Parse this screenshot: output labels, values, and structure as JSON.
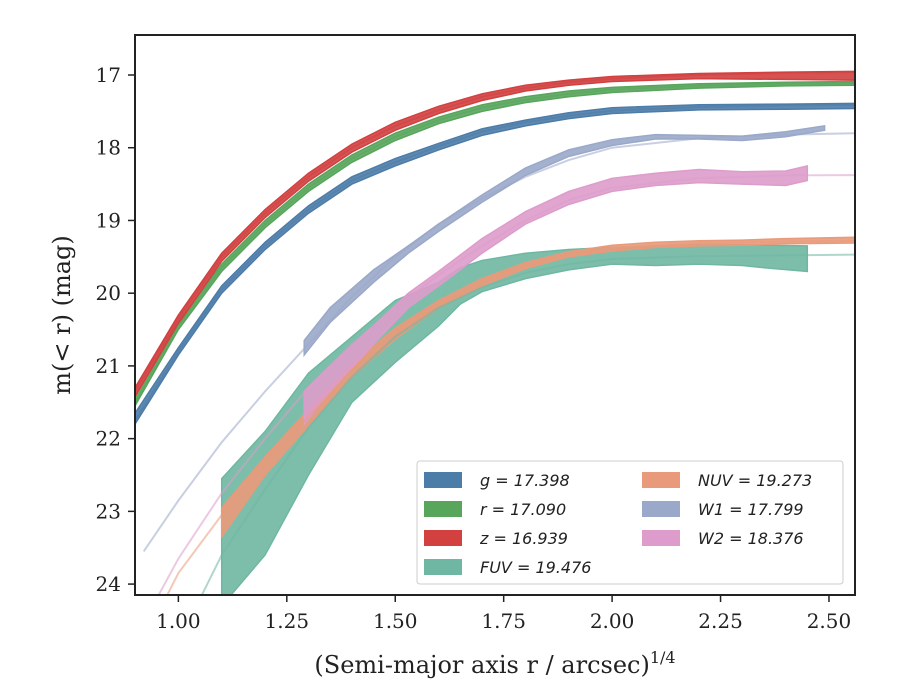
{
  "chart_data": {
    "type": "line",
    "xlabel": "(Semi-major axis r / arcsec)",
    "xlabel_exponent": "1/4",
    "ylabel": "m(< r) (mag)",
    "xlim": [
      0.9,
      2.56
    ],
    "ylim": [
      24.15,
      16.45
    ],
    "y_inverted": true,
    "grid": false,
    "legend_position": "lower-right",
    "xticks": [
      "1.00",
      "1.25",
      "1.50",
      "1.75",
      "2.00",
      "2.25",
      "2.50"
    ],
    "yticks": [
      "17",
      "18",
      "19",
      "20",
      "21",
      "22",
      "23",
      "24"
    ],
    "series": [
      {
        "name": "g = 17.398",
        "legend_label": "g = 17.398",
        "color": "#4c7ca8",
        "fit_asymptote": 17.398,
        "fit_line": [
          [
            0.9,
            21.75
          ],
          [
            1.0,
            20.8
          ],
          [
            1.1,
            19.95
          ],
          [
            1.2,
            19.35
          ],
          [
            1.3,
            18.85
          ],
          [
            1.4,
            18.45
          ],
          [
            1.5,
            18.2
          ],
          [
            1.6,
            17.98
          ],
          [
            1.7,
            17.78
          ],
          [
            1.8,
            17.65
          ],
          [
            1.9,
            17.56
          ],
          [
            2.0,
            17.49
          ],
          [
            2.2,
            17.44
          ],
          [
            2.4,
            17.42
          ],
          [
            2.56,
            17.41
          ]
        ],
        "band": {
          "x": [
            0.9,
            1.0,
            1.1,
            1.2,
            1.3,
            1.4,
            1.5,
            1.6,
            1.7,
            1.8,
            1.9,
            2.0,
            2.2,
            2.4,
            2.56
          ],
          "y_low": [
            21.8,
            20.85,
            20.0,
            19.4,
            18.9,
            18.5,
            18.25,
            18.03,
            17.83,
            17.7,
            17.6,
            17.53,
            17.48,
            17.47,
            17.46
          ],
          "y_high": [
            21.65,
            20.75,
            19.9,
            19.3,
            18.8,
            18.4,
            18.15,
            17.94,
            17.74,
            17.62,
            17.52,
            17.45,
            17.41,
            17.4,
            17.39
          ]
        }
      },
      {
        "name": "r = 17.090",
        "legend_label": "r = 17.090",
        "color": "#58a55c",
        "fit_asymptote": 17.09,
        "fit_line": [
          [
            0.9,
            21.5
          ],
          [
            1.0,
            20.45
          ],
          [
            1.1,
            19.65
          ],
          [
            1.2,
            19.05
          ],
          [
            1.3,
            18.55
          ],
          [
            1.4,
            18.15
          ],
          [
            1.5,
            17.85
          ],
          [
            1.6,
            17.62
          ],
          [
            1.7,
            17.45
          ],
          [
            1.8,
            17.34
          ],
          [
            1.9,
            17.26
          ],
          [
            2.0,
            17.2
          ],
          [
            2.2,
            17.15
          ],
          [
            2.4,
            17.12
          ],
          [
            2.56,
            17.11
          ]
        ],
        "band": {
          "x": [
            0.9,
            1.0,
            1.1,
            1.2,
            1.3,
            1.4,
            1.5,
            1.6,
            1.7,
            1.8,
            1.9,
            2.0,
            2.2,
            2.4,
            2.56
          ],
          "y_low": [
            21.55,
            20.5,
            19.7,
            19.1,
            18.6,
            18.2,
            17.9,
            17.67,
            17.5,
            17.38,
            17.3,
            17.24,
            17.18,
            17.15,
            17.14
          ],
          "y_high": [
            21.42,
            20.4,
            19.6,
            19.0,
            18.5,
            18.1,
            17.8,
            17.58,
            17.41,
            17.3,
            17.22,
            17.17,
            17.12,
            17.1,
            17.09
          ]
        }
      },
      {
        "name": "z = 16.939",
        "legend_label": "z = 16.939",
        "color": "#d24040",
        "fit_asymptote": 16.939,
        "fit_line": [
          [
            0.9,
            21.35
          ],
          [
            1.0,
            20.35
          ],
          [
            1.1,
            19.5
          ],
          [
            1.2,
            18.9
          ],
          [
            1.3,
            18.4
          ],
          [
            1.4,
            18.0
          ],
          [
            1.5,
            17.7
          ],
          [
            1.6,
            17.48
          ],
          [
            1.7,
            17.3
          ],
          [
            1.8,
            17.18
          ],
          [
            1.9,
            17.1
          ],
          [
            2.0,
            17.05
          ],
          [
            2.2,
            17.0
          ],
          [
            2.4,
            16.97
          ],
          [
            2.56,
            16.96
          ]
        ],
        "band": {
          "x": [
            0.9,
            1.0,
            1.1,
            1.2,
            1.3,
            1.4,
            1.5,
            1.6,
            1.7,
            1.8,
            1.9,
            2.0,
            2.2,
            2.4,
            2.56
          ],
          "y_low": [
            21.42,
            20.42,
            19.56,
            18.96,
            18.46,
            18.06,
            17.76,
            17.53,
            17.35,
            17.22,
            17.14,
            17.09,
            17.05,
            17.06,
            17.07
          ],
          "y_high": [
            21.3,
            20.3,
            19.45,
            18.85,
            18.35,
            17.95,
            17.65,
            17.43,
            17.26,
            17.14,
            17.07,
            17.02,
            16.98,
            16.96,
            16.95
          ]
        }
      },
      {
        "name": "FUV = 19.476",
        "legend_label": "FUV = 19.476",
        "color": "#6fb7a2",
        "fit_asymptote": 19.476,
        "fit_line": [
          [
            1.05,
            24.2
          ],
          [
            1.1,
            23.6
          ],
          [
            1.2,
            22.7
          ],
          [
            1.3,
            21.85
          ],
          [
            1.4,
            21.15
          ],
          [
            1.5,
            20.6
          ],
          [
            1.6,
            20.2
          ],
          [
            1.7,
            19.92
          ],
          [
            1.8,
            19.72
          ],
          [
            1.9,
            19.6
          ],
          [
            2.0,
            19.53
          ],
          [
            2.2,
            19.49
          ],
          [
            2.4,
            19.48
          ],
          [
            2.56,
            19.47
          ]
        ],
        "band": {
          "x": [
            1.1,
            1.2,
            1.3,
            1.4,
            1.5,
            1.6,
            1.65,
            1.7,
            1.8,
            1.9,
            2.0,
            2.1,
            2.2,
            2.3,
            2.35,
            2.45
          ],
          "y_low": [
            24.3,
            23.6,
            22.5,
            21.5,
            20.95,
            20.45,
            20.15,
            19.98,
            19.8,
            19.68,
            19.6,
            19.62,
            19.6,
            19.62,
            19.65,
            19.7
          ],
          "y_high": [
            22.55,
            21.9,
            21.1,
            20.6,
            20.1,
            19.85,
            19.65,
            19.55,
            19.45,
            19.4,
            19.37,
            19.35,
            19.33,
            19.33,
            19.34,
            19.35
          ]
        }
      },
      {
        "name": "NUV = 19.273",
        "legend_label": "NUV = 19.273",
        "color": "#e99a7a",
        "fit_asymptote": 19.273,
        "fit_line": [
          [
            0.97,
            24.2
          ],
          [
            1.0,
            23.85
          ],
          [
            1.1,
            23.05
          ],
          [
            1.2,
            22.35
          ],
          [
            1.3,
            21.7
          ],
          [
            1.4,
            21.05
          ],
          [
            1.5,
            20.55
          ],
          [
            1.6,
            20.15
          ],
          [
            1.7,
            19.85
          ],
          [
            1.8,
            19.62
          ],
          [
            1.9,
            19.47
          ],
          [
            2.0,
            19.38
          ],
          [
            2.2,
            19.31
          ],
          [
            2.4,
            19.29
          ],
          [
            2.56,
            19.28
          ]
        ],
        "band": {
          "x": [
            1.1,
            1.2,
            1.3,
            1.4,
            1.5,
            1.6,
            1.7,
            1.8,
            1.9,
            2.0,
            2.1,
            2.2,
            2.3,
            2.4,
            2.56
          ],
          "y_low": [
            23.35,
            22.5,
            21.82,
            21.15,
            20.63,
            20.2,
            19.9,
            19.66,
            19.5,
            19.42,
            19.37,
            19.35,
            19.34,
            19.32,
            19.31
          ],
          "y_high": [
            22.95,
            22.25,
            21.6,
            20.98,
            20.48,
            20.1,
            19.8,
            19.58,
            19.43,
            19.34,
            19.3,
            19.28,
            19.27,
            19.25,
            19.23
          ]
        }
      },
      {
        "name": "W1 = 17.799",
        "legend_label": "W1 = 17.799",
        "color": "#9aa8c9",
        "fit_asymptote": 17.799,
        "fit_line": [
          [
            0.92,
            23.55
          ],
          [
            1.0,
            22.85
          ],
          [
            1.1,
            22.05
          ],
          [
            1.2,
            21.35
          ],
          [
            1.3,
            20.7
          ],
          [
            1.4,
            20.05
          ],
          [
            1.5,
            19.5
          ],
          [
            1.6,
            19.05
          ],
          [
            1.7,
            18.7
          ],
          [
            1.8,
            18.4
          ],
          [
            1.9,
            18.17
          ],
          [
            2.0,
            18.0
          ],
          [
            2.2,
            17.87
          ],
          [
            2.4,
            17.82
          ],
          [
            2.56,
            17.8
          ]
        ],
        "band": {
          "x": [
            1.29,
            1.35,
            1.45,
            1.53,
            1.6,
            1.7,
            1.8,
            1.9,
            2.0,
            2.1,
            2.2,
            2.3,
            2.4,
            2.49
          ],
          "y_low": [
            20.85,
            20.4,
            19.85,
            19.45,
            19.15,
            18.75,
            18.38,
            18.12,
            17.97,
            17.88,
            17.88,
            17.9,
            17.85,
            17.76
          ],
          "y_high": [
            20.65,
            20.2,
            19.68,
            19.35,
            19.05,
            18.65,
            18.28,
            18.03,
            17.89,
            17.82,
            17.83,
            17.84,
            17.78,
            17.7
          ]
        }
      },
      {
        "name": "W2 = 18.376",
        "legend_label": "W2 = 18.376",
        "color": "#dd9ccb",
        "fit_asymptote": 18.376,
        "fit_line": [
          [
            0.95,
            24.2
          ],
          [
            1.0,
            23.65
          ],
          [
            1.1,
            22.75
          ],
          [
            1.2,
            22.0
          ],
          [
            1.3,
            21.3
          ],
          [
            1.4,
            20.7
          ],
          [
            1.5,
            20.2
          ],
          [
            1.6,
            19.75
          ],
          [
            1.7,
            19.35
          ],
          [
            1.8,
            19.0
          ],
          [
            1.9,
            18.72
          ],
          [
            2.0,
            18.55
          ],
          [
            2.2,
            18.42
          ],
          [
            2.4,
            18.38
          ],
          [
            2.56,
            18.376
          ]
        ],
        "band": {
          "x": [
            1.29,
            1.35,
            1.45,
            1.53,
            1.6,
            1.7,
            1.8,
            1.9,
            2.0,
            2.1,
            2.2,
            2.3,
            2.4,
            2.45
          ],
          "y_low": [
            21.8,
            21.35,
            20.7,
            20.2,
            19.9,
            19.45,
            19.05,
            18.78,
            18.6,
            18.52,
            18.48,
            18.5,
            18.52,
            18.45
          ],
          "y_high": [
            21.35,
            21.0,
            20.45,
            20.0,
            19.7,
            19.25,
            18.88,
            18.6,
            18.42,
            18.35,
            18.3,
            18.33,
            18.32,
            18.25
          ]
        }
      }
    ]
  }
}
